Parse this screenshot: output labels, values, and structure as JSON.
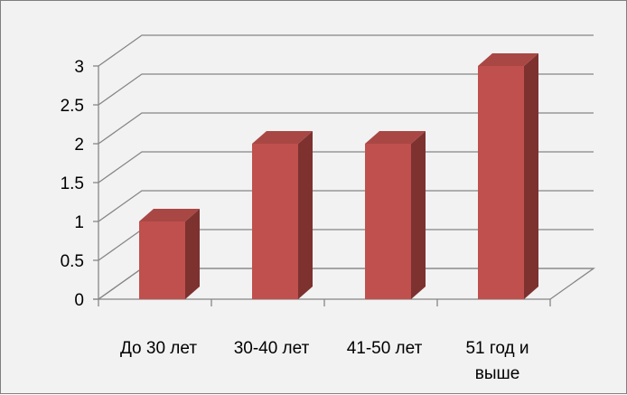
{
  "chart_data": {
    "type": "bar",
    "categories": [
      "До 30 лет",
      "30-40 лет",
      "41-50 лет",
      "51 год и выше"
    ],
    "values": [
      1,
      2,
      2,
      3
    ],
    "title": "",
    "xlabel": "",
    "ylabel": "",
    "ylim": [
      0,
      3
    ],
    "ytick_labels": [
      "0",
      "0.5",
      "1",
      "1.5",
      "2",
      "2.5",
      "3"
    ],
    "grid": true,
    "legend": "none",
    "style": "3d-column"
  },
  "colors": {
    "bar_front": "#c0504d",
    "bar_top": "#a94744",
    "bar_side": "#7d3230",
    "plot_background": "#f2f2f2",
    "gridline": "#868686",
    "frame_border": "#7f7f7f"
  }
}
